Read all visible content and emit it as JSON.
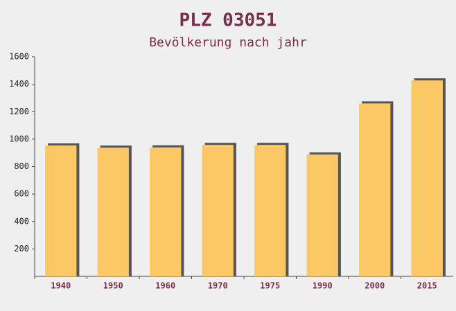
{
  "chart_data": {
    "type": "bar",
    "title": "PLZ 03051",
    "subtitle": "Bevölkerung nach jahr",
    "categories": [
      "1940",
      "1950",
      "1960",
      "1970",
      "1975",
      "1990",
      "2000",
      "2015"
    ],
    "values": [
      954,
      938,
      940,
      958,
      958,
      888,
      1260,
      1428
    ],
    "color": "#fcc866",
    "ylim": [
      0,
      1600
    ],
    "yticks": [
      200,
      400,
      600,
      800,
      1000,
      1200,
      1400,
      1600
    ]
  }
}
